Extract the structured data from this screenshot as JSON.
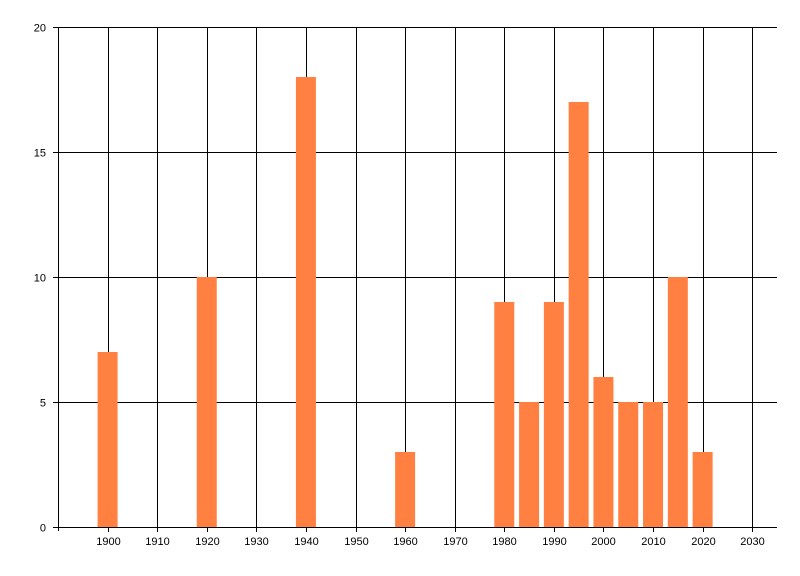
{
  "chart_data": {
    "type": "bar",
    "title": "",
    "xlabel": "",
    "ylabel": "",
    "x": [
      1900,
      1920,
      1940,
      1960,
      1980,
      1985,
      1990,
      1995,
      2000,
      2005,
      2010,
      2015,
      2020
    ],
    "values": [
      7,
      10,
      18,
      3,
      9,
      5,
      9,
      17,
      6,
      5,
      5,
      10,
      3
    ],
    "xlim": [
      1890,
      2035
    ],
    "ylim": [
      0,
      20
    ],
    "x_ticks": [
      1900,
      1910,
      1920,
      1930,
      1940,
      1950,
      1960,
      1970,
      1980,
      1990,
      2000,
      2010,
      2020,
      2030
    ],
    "y_ticks": [
      0,
      5,
      10,
      15,
      20
    ],
    "grid": true,
    "legend": "none",
    "bar_color": "#ff8040",
    "grid_color": "#000000"
  }
}
